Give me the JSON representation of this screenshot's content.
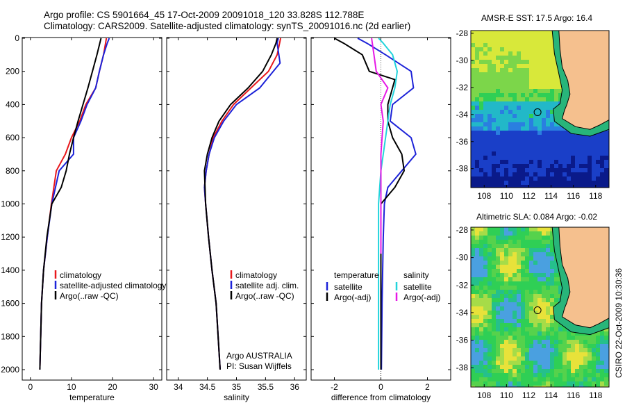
{
  "header": {
    "line1": "Argo profile: CS 5901664_45 17-Oct-2009 20091018_120 33.828S 112.788E",
    "line2": "Climatology: CARS2009. Satellite-adjusted climatology: synTS_20091016.nc (2d earlier)"
  },
  "colors": {
    "climatology": "#e8171b",
    "satellite": "#1c22d8",
    "argo": "#000000",
    "sal_satellite": "#22d4dc",
    "sal_argo": "#e619e6",
    "land": "#f5c08e"
  },
  "chart_data": [
    {
      "type": "line",
      "id": "temperature",
      "xlabel": "temperature",
      "xlim": [
        -2,
        32
      ],
      "ylim": [
        0,
        2080
      ],
      "y_reversed": true,
      "xticks": [
        0,
        10,
        20,
        30
      ],
      "yticks": [
        0,
        200,
        400,
        600,
        800,
        1000,
        1200,
        1400,
        1600,
        1800,
        2000
      ],
      "legend": [
        "climatology",
        "satellite-adjusted climatology",
        "Argo(..raw -QC)"
      ],
      "legend_position": "lower-right",
      "series": [
        {
          "name": "climatology",
          "color": "climatology",
          "x": [
            18.5,
            18.3,
            17.8,
            16.8,
            15.9,
            13.5,
            12.0,
            10.0,
            8.5,
            6.3,
            5.1,
            4.1,
            3.2,
            2.7,
            2.3
          ],
          "y": [
            0,
            30,
            100,
            200,
            300,
            400,
            500,
            600,
            700,
            800,
            1000,
            1200,
            1400,
            1600,
            2000
          ]
        },
        {
          "name": "satellite-adjusted climatology",
          "color": "satellite",
          "x": [
            19.2,
            18.7,
            17.8,
            16.8,
            15.9,
            13.8,
            12.3,
            10.5,
            10.5,
            7.0,
            5.2,
            4.1,
            3.2,
            2.7,
            2.3
          ],
          "y": [
            0,
            30,
            100,
            200,
            300,
            400,
            500,
            600,
            700,
            800,
            1000,
            1200,
            1400,
            1600,
            2000
          ]
        },
        {
          "name": "Argo(..raw -QC)",
          "color": "argo",
          "x": [
            17.2,
            16.9,
            16.2,
            15.1,
            14.0,
            12.8,
            11.6,
            10.5,
            9.5,
            8.7,
            7.5,
            5.2,
            4.0,
            3.2,
            2.7,
            2.3
          ],
          "y": [
            0,
            30,
            100,
            200,
            300,
            400,
            500,
            600,
            700,
            800,
            900,
            1000,
            1200,
            1400,
            1600,
            2000
          ]
        }
      ]
    },
    {
      "type": "line",
      "id": "salinity",
      "xlabel": "salinity",
      "xlim": [
        33.8,
        36.2
      ],
      "ylim": [
        0,
        2080
      ],
      "y_reversed": true,
      "xticks": [
        34,
        34.5,
        35,
        35.5,
        36
      ],
      "legend": [
        "climatology",
        "satellite adj. clim.",
        "Argo(..raw -QC)"
      ],
      "legend_position": "lower-right",
      "annotation": [
        "Argo AUSTRALIA",
        "PI: Susan Wijffels"
      ],
      "series": [
        {
          "name": "climatology",
          "color": "climatology",
          "x": [
            35.76,
            35.7,
            35.55,
            35.25,
            34.95,
            34.75,
            34.6,
            34.53,
            34.48,
            34.45,
            34.47,
            34.52,
            34.58,
            34.65,
            34.72
          ],
          "y": [
            0,
            100,
            200,
            300,
            400,
            500,
            600,
            700,
            800,
            900,
            1000,
            1200,
            1400,
            1600,
            2000
          ]
        },
        {
          "name": "satellite adj. clim.",
          "color": "satellite",
          "x": [
            35.72,
            35.7,
            35.75,
            35.4,
            35.0,
            34.78,
            34.62,
            34.53,
            34.48,
            34.45,
            34.47,
            34.52,
            34.58,
            34.65,
            34.72
          ],
          "y": [
            0,
            30,
            150,
            300,
            400,
            500,
            600,
            700,
            800,
            900,
            1000,
            1200,
            1400,
            1600,
            2000
          ]
        },
        {
          "name": "Argo(..raw -QC)",
          "color": "argo",
          "x": [
            35.7,
            35.68,
            35.6,
            35.45,
            35.2,
            34.9,
            34.7,
            34.58,
            34.5,
            34.45,
            34.47,
            34.52,
            34.58,
            34.65,
            34.72
          ],
          "y": [
            0,
            30,
            100,
            200,
            300,
            400,
            500,
            600,
            700,
            800,
            1000,
            1200,
            1400,
            1600,
            2000
          ]
        }
      ]
    },
    {
      "type": "line",
      "id": "difference",
      "xlabel": "difference from climatology",
      "xlim": [
        -3,
        3
      ],
      "ylim": [
        0,
        2080
      ],
      "y_reversed": true,
      "xticks": [
        -2,
        0,
        2
      ],
      "zero_line": true,
      "legend_groups": [
        {
          "title": "temperature",
          "items": [
            "satellite",
            "Argo(-adj)"
          ]
        },
        {
          "title": "salinity",
          "items": [
            "satellite",
            "Argo(-adj)"
          ]
        }
      ],
      "legend_position": "lower-right",
      "series": [
        {
          "name": "temperature satellite",
          "color": "satellite",
          "x": [
            -1.0,
            -0.6,
            0.2,
            1.3,
            1.4,
            0.5,
            0.4,
            1.3,
            1.5,
            0.9,
            0.3,
            0.15,
            0.1,
            0.05,
            0.02
          ],
          "y": [
            0,
            30,
            100,
            200,
            300,
            400,
            500,
            600,
            700,
            800,
            900,
            1000,
            1200,
            1600,
            2000
          ]
        },
        {
          "name": "temperature Argo(-adj)",
          "color": "argo",
          "x": [
            -2.0,
            -1.6,
            -0.8,
            -0.5,
            0.6,
            0.3,
            0.3,
            0.5,
            0.9,
            1.0,
            0.6,
            0.0,
            0.0,
            0.0,
            0.0
          ],
          "y": [
            0,
            30,
            100,
            200,
            250,
            400,
            500,
            600,
            700,
            800,
            900,
            1000,
            1200,
            1600,
            2000
          ]
        },
        {
          "name": "salinity satellite",
          "color": "sal_satellite",
          "x": [
            -0.1,
            0.1,
            0.5,
            0.7,
            0.6,
            0.4,
            0.3,
            0.2,
            0.1,
            0.0,
            -0.1,
            -0.1,
            -0.1,
            -0.1
          ],
          "y": [
            0,
            30,
            100,
            200,
            300,
            400,
            500,
            600,
            700,
            800,
            1000,
            1200,
            1600,
            2000
          ]
        },
        {
          "name": "salinity Argo(-adj)",
          "color": "sal_argo",
          "x": [
            -0.4,
            -0.3,
            -0.2,
            0.3,
            0.0,
            0.1,
            0.0,
            0.0,
            0.0,
            0.0,
            0.0
          ],
          "y": [
            0,
            100,
            200,
            300,
            400,
            500,
            700,
            900,
            1000,
            1200,
            1300
          ],
          "clip": 1300
        }
      ]
    },
    {
      "type": "heatmap",
      "id": "amsre-sst",
      "title": "AMSR-E SST: 17.5 Argo: 16.4",
      "xticks": [
        108,
        110,
        112,
        114,
        116,
        118
      ],
      "yticks": [
        -28,
        -30,
        -32,
        -34,
        -36,
        -38
      ],
      "xlim": [
        106.8,
        119.2
      ],
      "ylim": [
        -39.4,
        -27.8
      ],
      "marker": {
        "lon": 112.788,
        "lat": -33.828
      }
    },
    {
      "type": "heatmap",
      "id": "altimetric-sla",
      "title": "Altimetric SLA: 0.084 Argo: -0.02",
      "xticks": [
        108,
        110,
        112,
        114,
        116,
        118
      ],
      "yticks": [
        -28,
        -30,
        -32,
        -34,
        -36,
        -38
      ],
      "xlim": [
        106.8,
        119.2
      ],
      "ylim": [
        -39.4,
        -27.8
      ],
      "marker": {
        "lon": 112.788,
        "lat": -33.828
      }
    }
  ],
  "stamp": "CSIRO 22-Oct-2009 10:30:36"
}
